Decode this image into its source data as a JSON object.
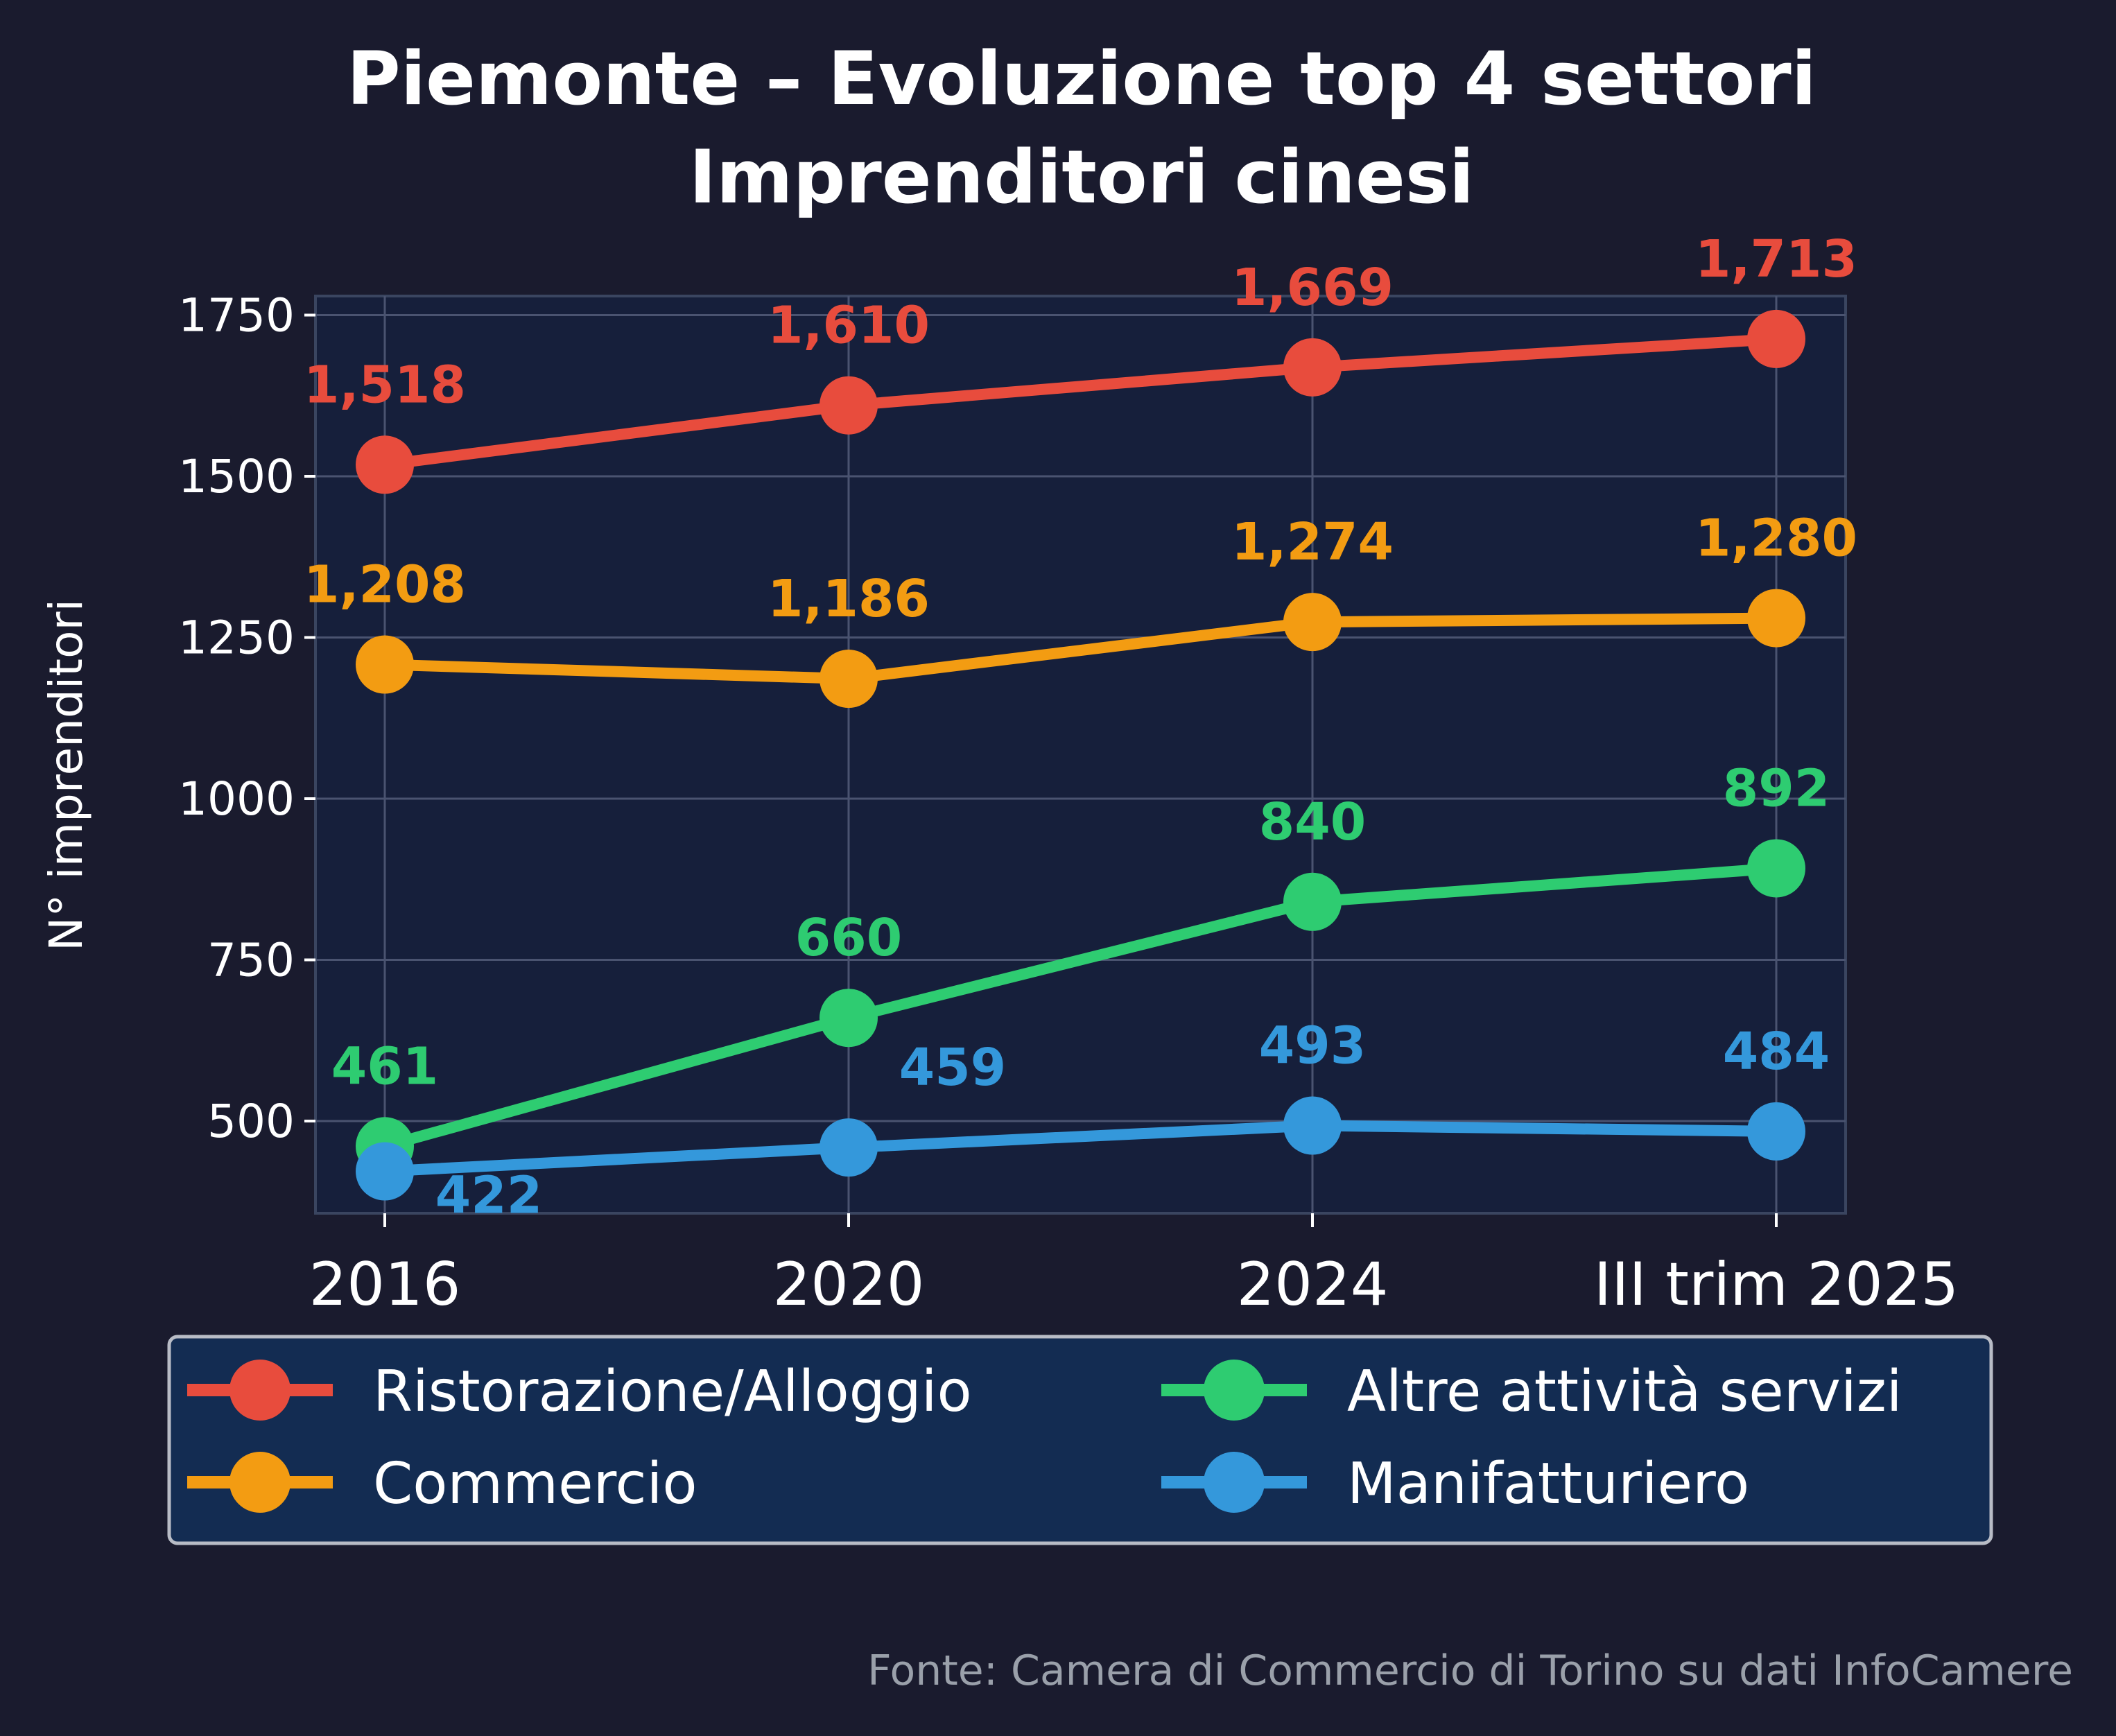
{
  "colors": {
    "background": "#1a1b2e",
    "plot_background": "#161f3b",
    "grid": "#4a5370",
    "legend_background": "#132c52",
    "legend_border": "#b8bcc6"
  },
  "chart_data": {
    "type": "line",
    "title": "Piemonte – Evoluzione top 4 settori",
    "subtitle": "Imprenditori cinesi",
    "xlabel": "",
    "ylabel": "N° imprenditori",
    "categories": [
      "2016",
      "2020",
      "2024",
      "III trim 2025"
    ],
    "ylim": [
      360,
      1780
    ],
    "yticks": [
      500,
      750,
      1000,
      1250,
      1500,
      1750
    ],
    "ytick_labels": [
      "500",
      "750",
      "1000",
      "1250",
      "1500",
      "1750"
    ],
    "grid": true,
    "legend_position": "bottom",
    "series": [
      {
        "name": "Ristorazione/Alloggio",
        "color": "#e84c3d",
        "values": [
          1518,
          1610,
          1669,
          1713
        ],
        "labels": [
          "1,518",
          "1,610",
          "1,669",
          "1,713"
        ]
      },
      {
        "name": "Commercio",
        "color": "#f39c12",
        "values": [
          1208,
          1186,
          1274,
          1280
        ],
        "labels": [
          "1,208",
          "1,186",
          "1,274",
          "1,280"
        ]
      },
      {
        "name": "Altre attività servizi",
        "color": "#2ecc71",
        "values": [
          461,
          660,
          840,
          892
        ],
        "labels": [
          "461",
          "660",
          "840",
          "892"
        ]
      },
      {
        "name": "Manifatturiero",
        "color": "#3498db",
        "values": [
          422,
          459,
          493,
          484
        ],
        "labels": [
          "422",
          "459",
          "493",
          "484"
        ]
      }
    ]
  },
  "source": "Fonte: Camera di Commercio di Torino su dati InfoCamere"
}
